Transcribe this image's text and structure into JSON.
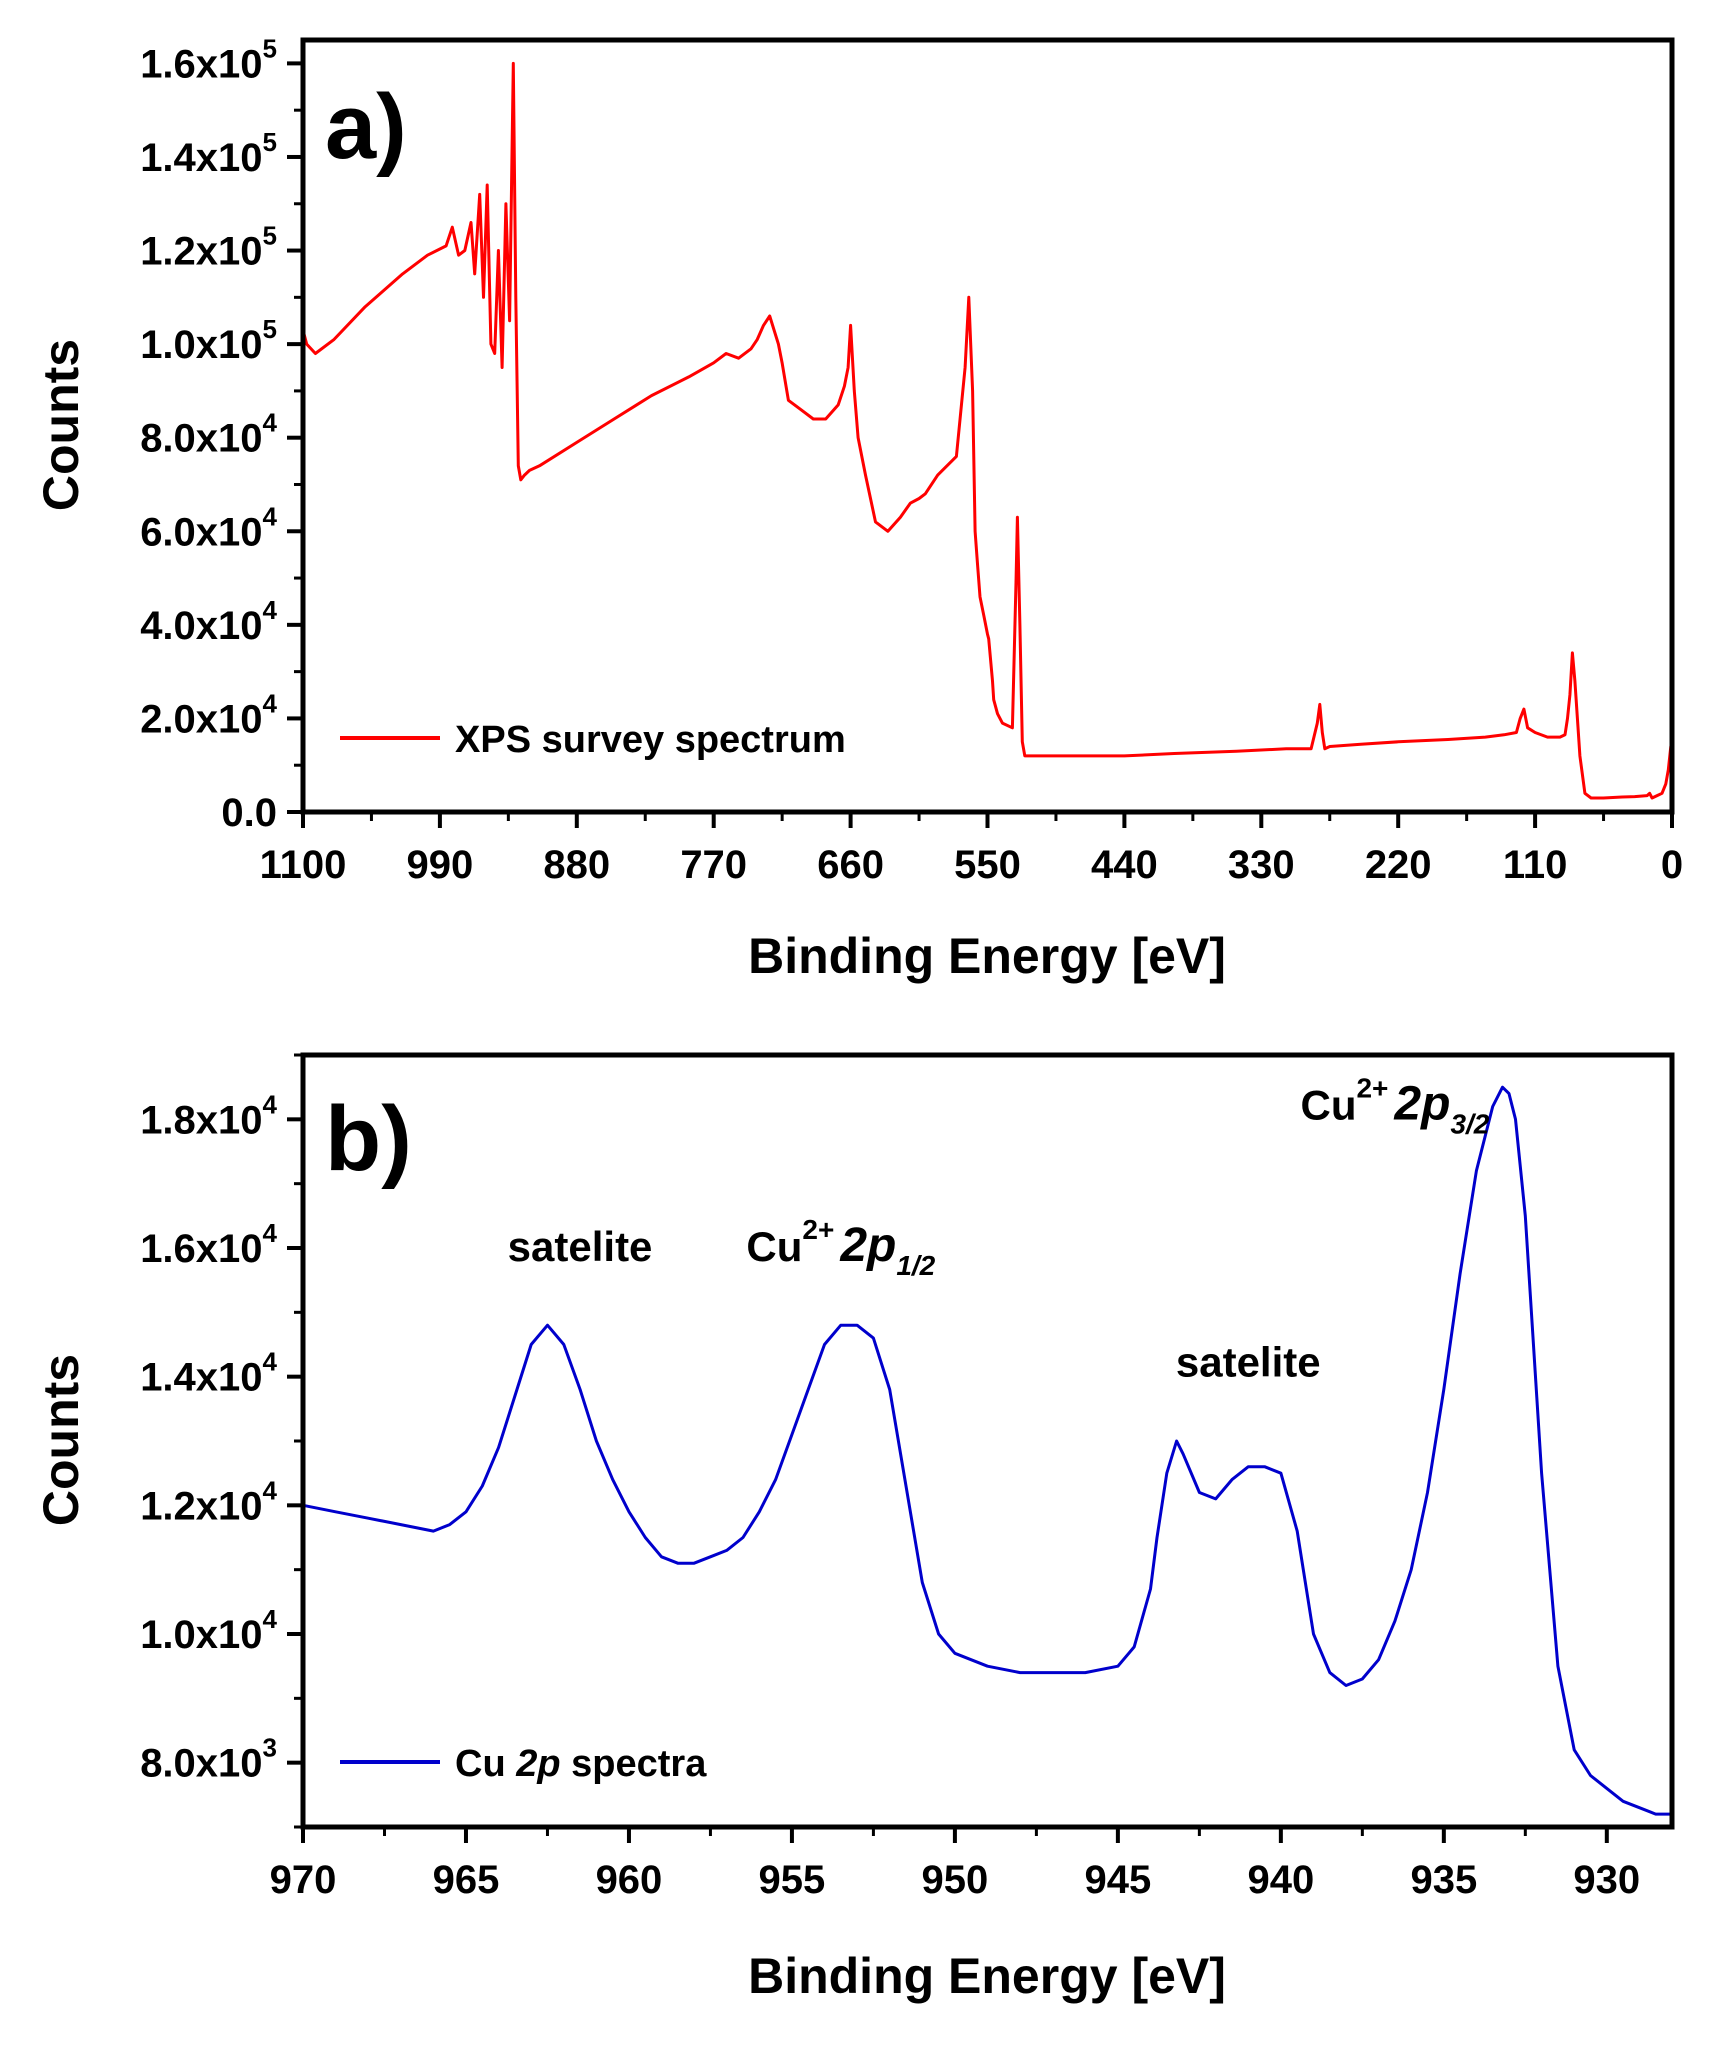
{
  "chart_data": [
    {
      "type": "line",
      "panel_label": "a)",
      "color": "#ff0000",
      "xlabel": "Binding Energy [eV]",
      "ylabel": "Counts",
      "xlim": [
        1100,
        0
      ],
      "ylim": [
        0,
        165000
      ],
      "x_ticks": [
        1100,
        990,
        880,
        770,
        660,
        550,
        440,
        330,
        220,
        110,
        0
      ],
      "x_tick_labels": [
        "1100",
        "990",
        "880",
        "770",
        "660",
        "550",
        "440",
        "330",
        "220",
        "110",
        "0"
      ],
      "y_ticks": [
        0,
        20000,
        40000,
        60000,
        80000,
        100000,
        120000,
        140000,
        160000
      ],
      "y_tick_labels": [
        {
          "mant": "0.0",
          "exp": ""
        },
        {
          "mant": "2.0x10",
          "exp": "4"
        },
        {
          "mant": "4.0x10",
          "exp": "4"
        },
        {
          "mant": "6.0x10",
          "exp": "4"
        },
        {
          "mant": "8.0x10",
          "exp": "4"
        },
        {
          "mant": "1.0x10",
          "exp": "5"
        },
        {
          "mant": "1.2x10",
          "exp": "5"
        },
        {
          "mant": "1.4x10",
          "exp": "5"
        },
        {
          "mant": "1.6x10",
          "exp": "5"
        }
      ],
      "legend": "XPS survey spectrum",
      "legend_position": "bottom-left",
      "series": [
        {
          "name": "XPS survey spectrum",
          "x": [
            1100,
            1097,
            1090,
            1075,
            1050,
            1020,
            1000,
            985,
            980,
            975,
            970,
            965,
            962,
            958,
            955,
            952,
            949,
            946,
            943,
            940,
            937,
            934,
            931,
            929,
            927,
            925,
            922,
            918,
            910,
            880,
            850,
            820,
            790,
            770,
            760,
            750,
            740,
            735,
            730,
            725,
            718,
            715,
            710,
            700,
            690,
            680,
            670,
            665,
            662,
            660,
            657,
            654,
            648,
            640,
            630,
            620,
            612,
            605,
            600,
            590,
            575,
            568,
            565,
            562,
            560,
            558,
            556,
            553,
            550,
            549,
            546,
            545,
            542,
            538,
            530,
            527,
            526,
            524,
            522,
            520,
            516,
            510,
            500,
            480,
            440,
            400,
            350,
            310,
            290,
            285,
            283,
            281,
            279,
            275,
            250,
            220,
            180,
            150,
            135,
            125,
            122,
            119,
            116,
            110,
            100,
            90,
            86,
            84,
            82,
            80,
            78,
            76,
            74,
            72,
            70,
            65,
            55,
            40,
            30,
            20,
            18,
            16,
            12,
            8,
            5,
            3,
            1,
            0
          ],
          "y": [
            103000,
            100000,
            98000,
            101000,
            108000,
            115000,
            119000,
            121000,
            125000,
            119000,
            120000,
            126000,
            115000,
            132000,
            110000,
            134000,
            100000,
            98000,
            120000,
            95000,
            130000,
            105000,
            160000,
            110000,
            74000,
            71000,
            72000,
            73000,
            74000,
            79000,
            84000,
            89000,
            93000,
            96000,
            98000,
            97000,
            99000,
            101000,
            104000,
            106000,
            100000,
            96000,
            88000,
            86000,
            84000,
            84000,
            87000,
            91000,
            95000,
            104000,
            90000,
            80000,
            72000,
            62000,
            60000,
            63000,
            66000,
            67000,
            68000,
            72000,
            76000,
            95000,
            110000,
            90000,
            60000,
            53000,
            46000,
            42000,
            38000,
            37000,
            28000,
            24000,
            21000,
            19000,
            18000,
            50000,
            63000,
            40000,
            15000,
            12000,
            12000,
            12000,
            12000,
            12000,
            12000,
            12500,
            13000,
            13500,
            13500,
            19000,
            23000,
            17000,
            13500,
            14000,
            14500,
            15000,
            15500,
            16000,
            16500,
            17000,
            20000,
            22000,
            18000,
            17000,
            16000,
            16000,
            16500,
            20000,
            25000,
            34000,
            28000,
            20000,
            12000,
            8000,
            4000,
            3000,
            3000,
            3200,
            3300,
            3500,
            4000,
            3000,
            3500,
            4000,
            6000,
            9000,
            14000,
            10000
          ]
        }
      ]
    },
    {
      "type": "line",
      "panel_label": "b)",
      "color": "#0000cc",
      "xlabel": "Binding Energy [eV]",
      "ylabel": "Counts",
      "xlim": [
        970,
        928
      ],
      "ylim": [
        7000,
        19000
      ],
      "x_ticks": [
        970,
        965,
        960,
        955,
        950,
        945,
        940,
        935,
        930
      ],
      "x_tick_labels": [
        "970",
        "965",
        "960",
        "955",
        "950",
        "945",
        "940",
        "935",
        "930"
      ],
      "y_ticks": [
        8000,
        10000,
        12000,
        14000,
        16000,
        18000
      ],
      "y_tick_labels": [
        {
          "mant": "8.0x10",
          "exp": "3"
        },
        {
          "mant": "1.0x10",
          "exp": "4"
        },
        {
          "mant": "1.2x10",
          "exp": "4"
        },
        {
          "mant": "1.4x10",
          "exp": "4"
        },
        {
          "mant": "1.6x10",
          "exp": "4"
        },
        {
          "mant": "1.8x10",
          "exp": "4"
        }
      ],
      "legend": {
        "pre": "Cu ",
        "italic": "2p",
        "post": " spectra"
      },
      "legend_position": "bottom-left",
      "annotations": [
        {
          "id": "sat1",
          "x": 961.5,
          "y": 15800,
          "text": "satelite"
        },
        {
          "id": "p12",
          "x": 953.5,
          "y": 15800,
          "base": "Cu",
          "sup": "2+",
          "main": "2p",
          "sub": "1/2"
        },
        {
          "id": "sat2",
          "x": 941,
          "y": 14000,
          "text": "satelite"
        },
        {
          "id": "p32",
          "x": 936.5,
          "y": 18000,
          "base": "Cu",
          "sup": "2+",
          "main": "2p",
          "sub": "3/2"
        }
      ],
      "series": [
        {
          "name": "Cu 2p spectra",
          "x": [
            970,
            969,
            968,
            967,
            966,
            965.5,
            965,
            964.5,
            964,
            963.5,
            963,
            962.5,
            962,
            961.5,
            961,
            960.5,
            960,
            959.5,
            959,
            958.5,
            958,
            957.5,
            957,
            956.5,
            956,
            955.5,
            955,
            954.5,
            954,
            953.5,
            953,
            952.5,
            952,
            951.5,
            951,
            950.5,
            950,
            949,
            948,
            947,
            946,
            945,
            944.5,
            944,
            943.8,
            943.5,
            943.2,
            943,
            942.5,
            942,
            941.5,
            941,
            940.5,
            940,
            939.5,
            939,
            938.5,
            938,
            937.5,
            937,
            936.5,
            936,
            935.5,
            935,
            934.5,
            934,
            933.5,
            933.2,
            933,
            932.8,
            932.5,
            932,
            931.5,
            931,
            930.5,
            930,
            929.5,
            929,
            928.5,
            928
          ],
          "y": [
            12000,
            11900,
            11800,
            11700,
            11600,
            11700,
            11900,
            12300,
            12900,
            13700,
            14500,
            14800,
            14500,
            13800,
            13000,
            12400,
            11900,
            11500,
            11200,
            11100,
            11100,
            11200,
            11300,
            11500,
            11900,
            12400,
            13100,
            13800,
            14500,
            14800,
            14800,
            14600,
            13800,
            12300,
            10800,
            10000,
            9700,
            9500,
            9400,
            9400,
            9400,
            9500,
            9800,
            10700,
            11500,
            12500,
            13000,
            12800,
            12200,
            12100,
            12400,
            12600,
            12600,
            12500,
            11600,
            10000,
            9400,
            9200,
            9300,
            9600,
            10200,
            11000,
            12200,
            13800,
            15600,
            17200,
            18200,
            18500,
            18400,
            18000,
            16500,
            12500,
            9500,
            8200,
            7800,
            7600,
            7400,
            7300,
            7200,
            7200
          ]
        }
      ]
    }
  ]
}
